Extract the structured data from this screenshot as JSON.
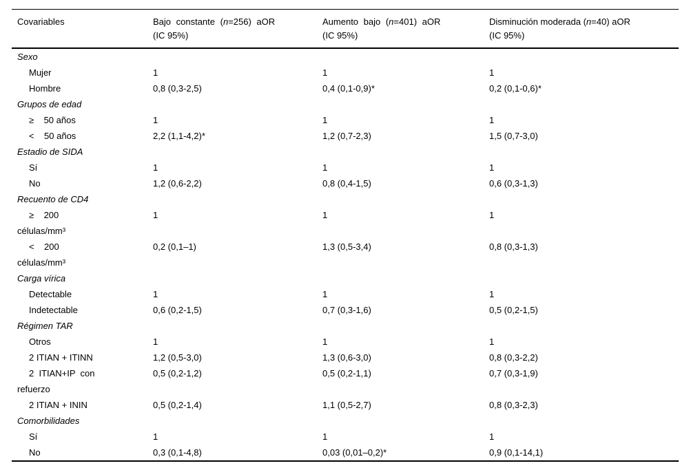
{
  "table": {
    "columns": [
      {
        "label": "Covariables"
      },
      {
        "pre": "Bajo constante (",
        "n": "n",
        "post": "=256) aOR",
        "line2": "(IC 95%)"
      },
      {
        "pre": "Aumento bajo (",
        "n": "n",
        "post": "=401) aOR",
        "line2": "(IC 95%)"
      },
      {
        "pre": "Disminución moderada (",
        "n": "n",
        "post": "=40) aOR",
        "line2": "(IC 95%)"
      }
    ],
    "rows": [
      {
        "type": "section",
        "label": "Sexo"
      },
      {
        "type": "data",
        "label": "Mujer",
        "values": [
          "1",
          "1",
          "1"
        ]
      },
      {
        "type": "data",
        "label": "Hombre",
        "values": [
          "0,8 (0,3-2,5)",
          "0,4 (0,1-0,9)*",
          "0,2 (0,1-0,6)*"
        ]
      },
      {
        "type": "section",
        "label": "Grupos de edad"
      },
      {
        "type": "data",
        "label": "≥    50 años",
        "values": [
          "1",
          "1",
          "1"
        ]
      },
      {
        "type": "data",
        "label": "<    50 años",
        "values": [
          "2,2 (1,1-4,2)*",
          "1,2 (0,7-2,3)",
          "1,5 (0,7-3,0)"
        ]
      },
      {
        "type": "section",
        "label": "Estadio de SIDA"
      },
      {
        "type": "data",
        "label": "Sí",
        "values": [
          "1",
          "1",
          "1"
        ]
      },
      {
        "type": "data",
        "label": "No",
        "values": [
          "1,2 (0,6-2,2)",
          "0,8 (0,4-1,5)",
          "0,6 (0,3-1,3)"
        ]
      },
      {
        "type": "section",
        "label": "Recuento de CD4"
      },
      {
        "type": "data",
        "label": "≥    200\ncélulas/mm³",
        "values": [
          "1",
          "1",
          "1"
        ]
      },
      {
        "type": "data",
        "label": "<    200\ncélulas/mm³",
        "values": [
          "0,2 (0,1–1)",
          "1,3 (0,5-3,4)",
          "0,8 (0,3-1,3)"
        ]
      },
      {
        "type": "section",
        "label": "Carga vírica"
      },
      {
        "type": "data",
        "label": "Detectable",
        "values": [
          "1",
          "1",
          "1"
        ]
      },
      {
        "type": "data",
        "label": "Indetectable",
        "values": [
          "0,6 (0,2-1,5)",
          "0,7 (0,3-1,6)",
          "0,5 (0,2-1,5)"
        ]
      },
      {
        "type": "section",
        "label": "Régimen TAR"
      },
      {
        "type": "data",
        "label": "Otros",
        "values": [
          "1",
          "1",
          "1"
        ]
      },
      {
        "type": "data",
        "label": "2 ITIAN + ITINN",
        "values": [
          "1,2 (0,5-3,0)",
          "1,3 (0,6-3,0)",
          "0,8 (0,3-2,2)"
        ]
      },
      {
        "type": "data",
        "label": "2  ITIAN+IP  con\nrefuerzo",
        "values": [
          "0,5 (0,2-1,2)",
          "0,5 (0,2-1,1)",
          "0,7 (0,3-1,9)"
        ]
      },
      {
        "type": "data",
        "label": "2 ITIAN + ININ",
        "values": [
          "0,5 (0,2-1,4)",
          "1,1 (0,5-2,7)",
          "0,8 (0,3-2,3)"
        ]
      },
      {
        "type": "section",
        "label": "Comorbilidades"
      },
      {
        "type": "data",
        "label": "Sí",
        "values": [
          "1",
          "1",
          "1"
        ]
      },
      {
        "type": "data",
        "label": "No",
        "values": [
          "0,3 (0,1-4,8)",
          "0,03 (0,01–0,2)*",
          "0,9 (0,1-14,1)"
        ]
      }
    ]
  }
}
